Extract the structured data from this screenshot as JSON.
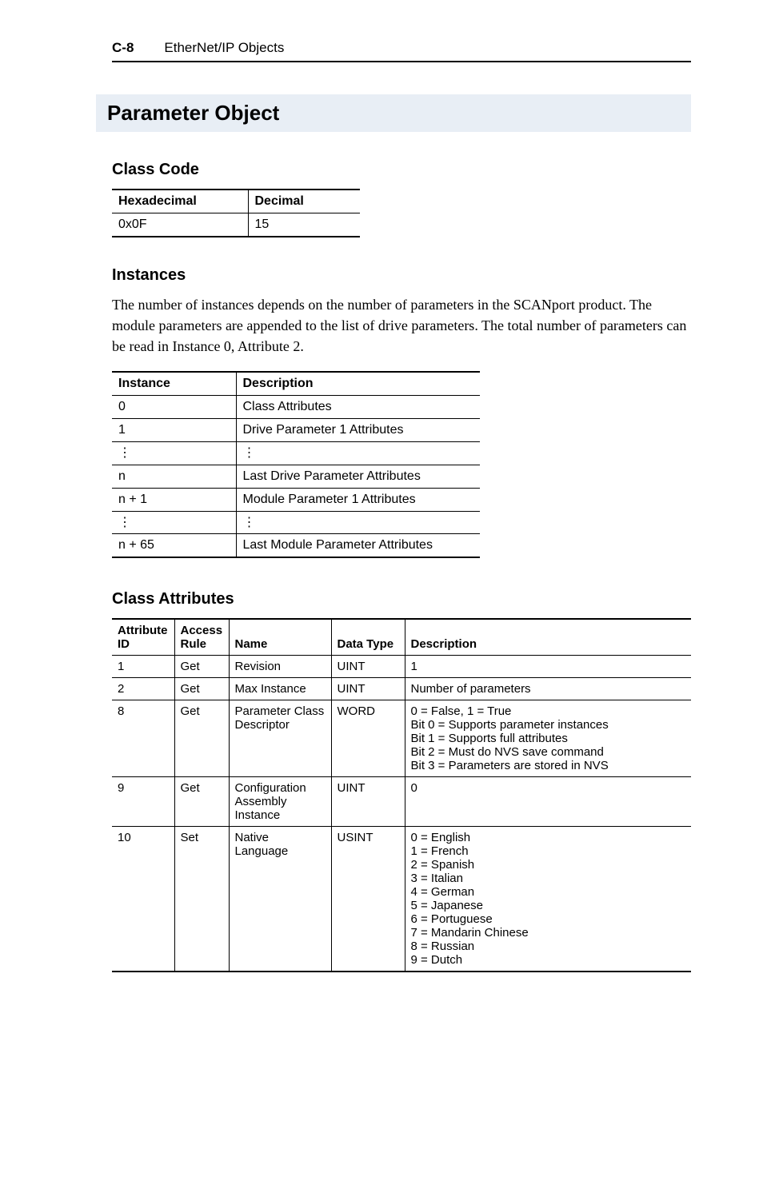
{
  "header": {
    "page_num": "C-8",
    "title": "EtherNet/IP Objects"
  },
  "section_title": "Parameter Object",
  "class_code": {
    "heading": "Class Code",
    "headers": [
      "Hexadecimal",
      "Decimal"
    ],
    "row": [
      "0x0F",
      "15"
    ]
  },
  "instances": {
    "heading": "Instances",
    "paragraph": "The number of instances depends on the number of parameters in the SCANport product. The module parameters are appended to the list of drive parameters. The total number of parameters can be read in Instance 0, Attribute 2.",
    "headers": [
      "Instance",
      "Description"
    ],
    "rows": [
      [
        "0",
        "Class Attributes"
      ],
      [
        "1",
        "Drive Parameter 1 Attributes"
      ],
      [
        "⋮",
        "⋮"
      ],
      [
        "n",
        "Last Drive Parameter Attributes"
      ],
      [
        "n + 1",
        "Module Parameter 1 Attributes"
      ],
      [
        "⋮",
        "⋮"
      ],
      [
        "n + 65",
        "Last Module Parameter Attributes"
      ]
    ]
  },
  "class_attributes": {
    "heading": "Class Attributes",
    "headers": [
      "Attribute ID",
      "Access Rule",
      "Name",
      "Data Type",
      "Description"
    ],
    "rows": [
      {
        "id": "1",
        "access": "Get",
        "name": "Revision",
        "dtype": "UINT",
        "desc": "1"
      },
      {
        "id": "2",
        "access": "Get",
        "name": "Max Instance",
        "dtype": "UINT",
        "desc": "Number of parameters"
      },
      {
        "id": "8",
        "access": "Get",
        "name": "Parameter Class Descriptor",
        "dtype": "WORD",
        "desc": "0 = False, 1 = True\nBit 0 = Supports parameter instances\nBit 1 = Supports full attributes\nBit 2 = Must do NVS save command\nBit 3 = Parameters are stored in NVS"
      },
      {
        "id": "9",
        "access": "Get",
        "name": "Configuration Assembly Instance",
        "dtype": "UINT",
        "desc": "0"
      },
      {
        "id": "10",
        "access": "Set",
        "name": "Native Language",
        "dtype": "USINT",
        "desc": "0 = English\n1 = French\n2 = Spanish\n3 = Italian\n4 = German\n5 = Japanese\n6 = Portuguese\n7 = Mandarin Chinese\n8 = Russian\n9 = Dutch"
      }
    ]
  }
}
